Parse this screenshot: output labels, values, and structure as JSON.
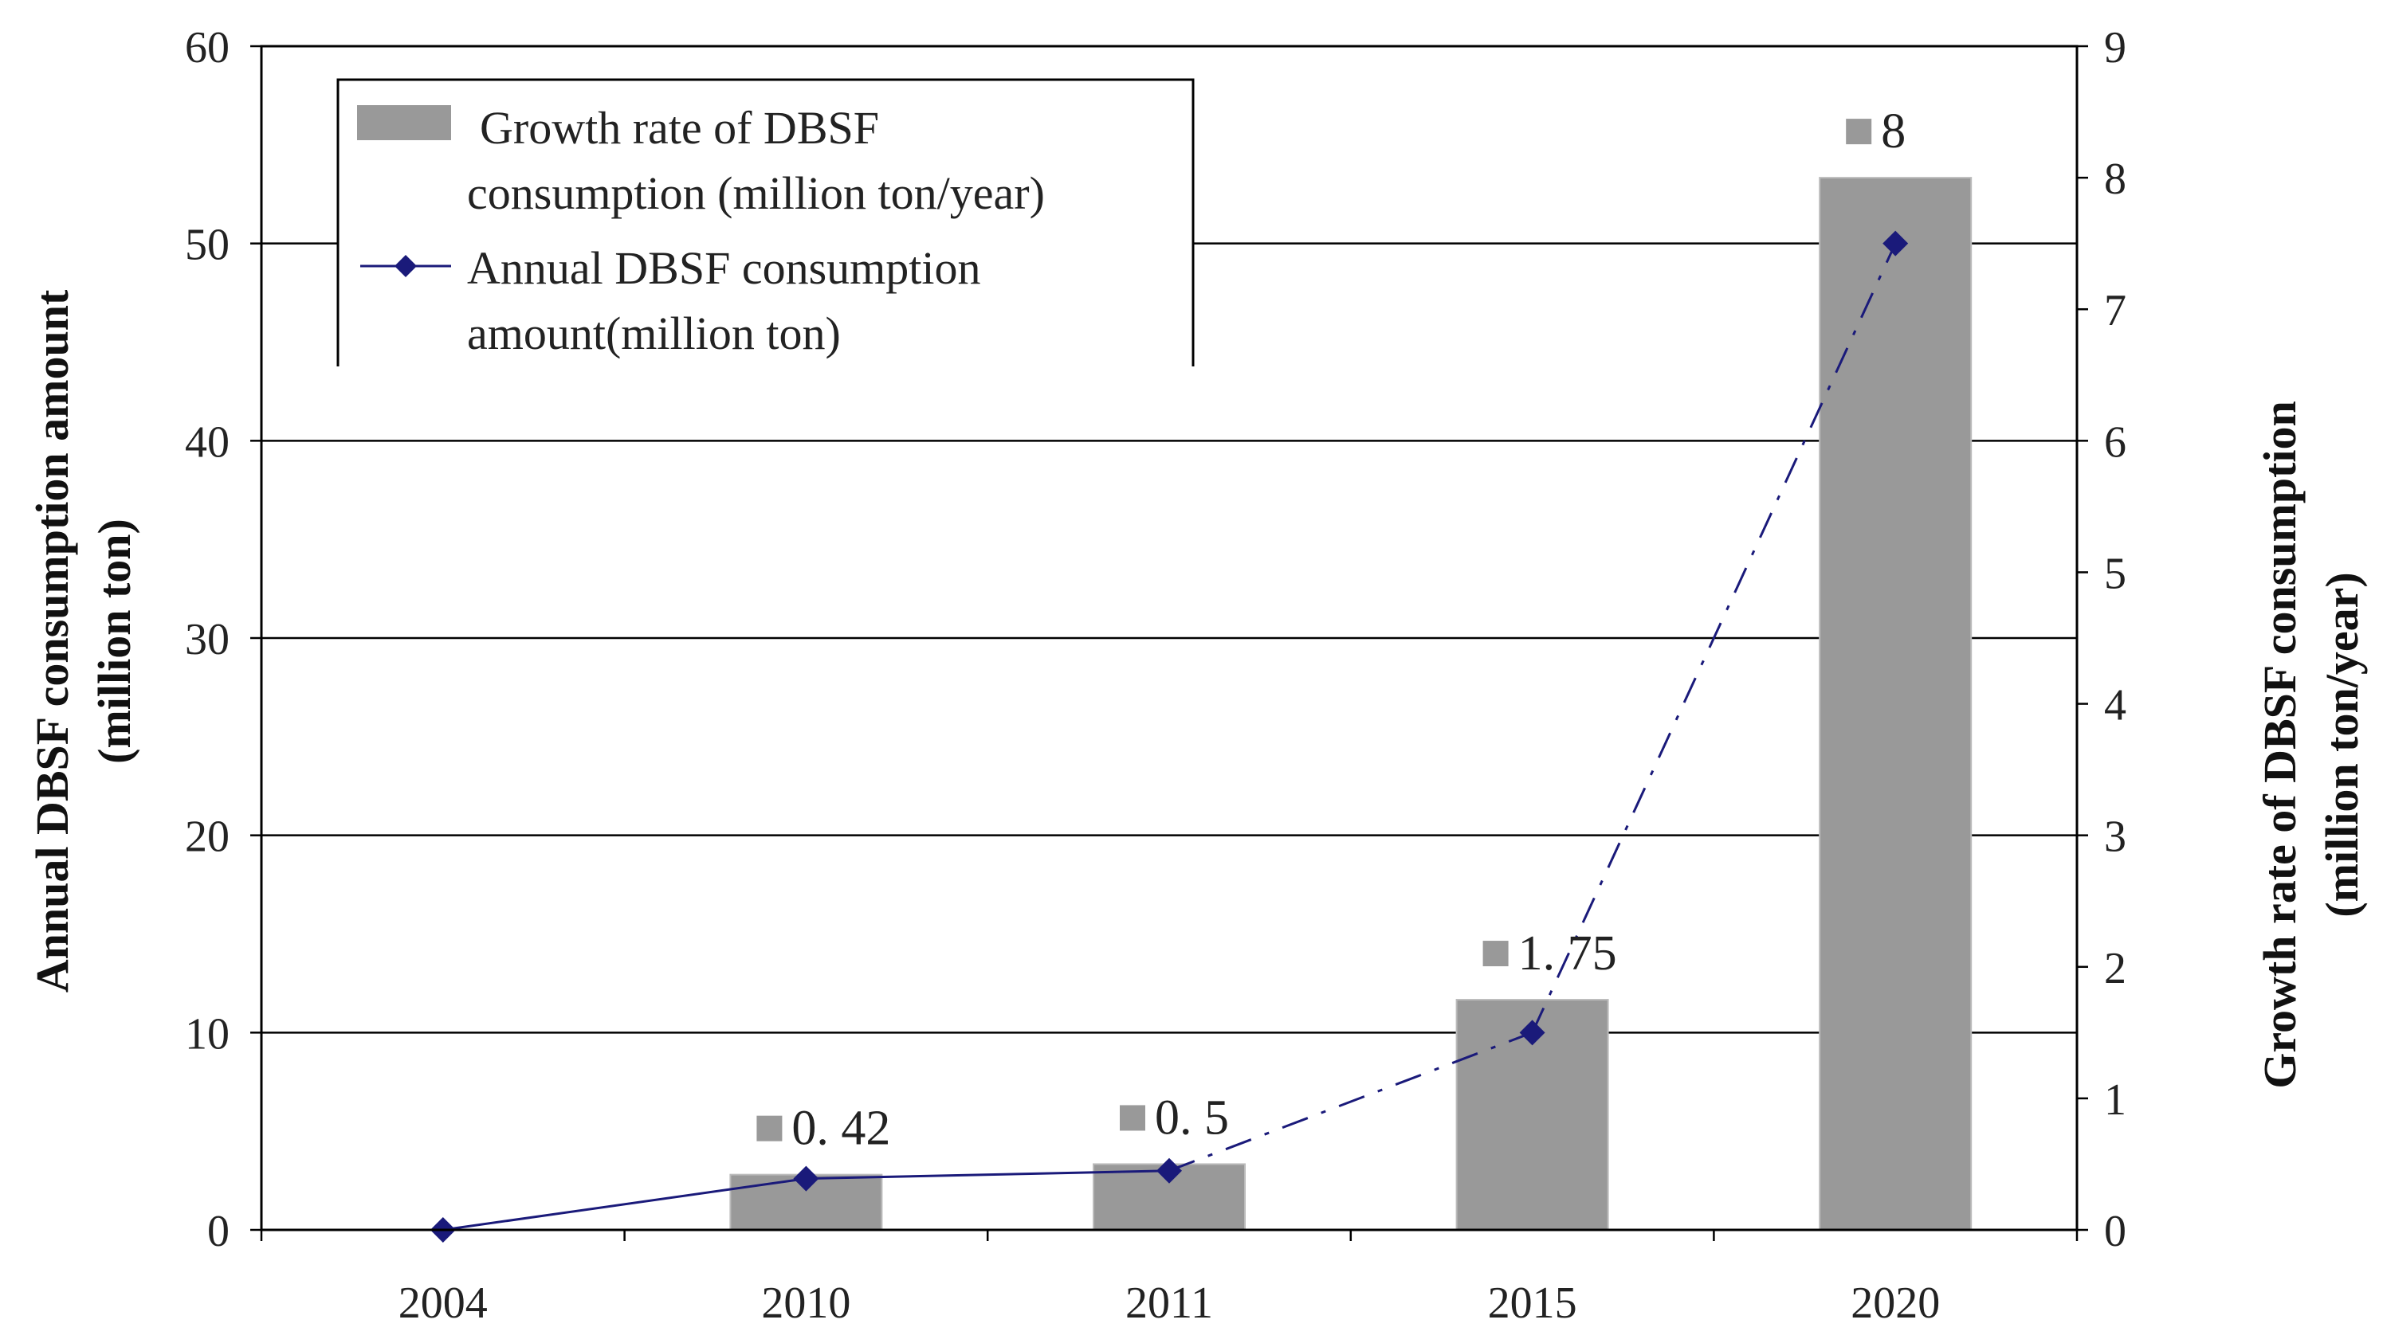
{
  "chart_data": {
    "type": "bar+line",
    "categories": [
      "2004",
      "2010",
      "2011",
      "2015",
      "2020"
    ],
    "series": [
      {
        "name": "Growth rate of DBSF consumption (million ton/year)",
        "kind": "bar",
        "axis": "right",
        "values": [
          null,
          0.42,
          0.5,
          1.75,
          8
        ],
        "labels": [
          "",
          "0. 42",
          "0. 5",
          "1. 75",
          "8"
        ],
        "color": "#999999"
      },
      {
        "name": "Annual DBSF consumption amount(million ton)",
        "kind": "line",
        "axis": "left",
        "values": [
          0,
          2.6,
          3.0,
          10.0,
          50.0
        ],
        "color": "#1a1a7a"
      }
    ],
    "left_axis": {
      "title_line1": "Annual DBSF consumption amount",
      "title_line2": "(million ton)",
      "ylim": [
        0,
        60
      ],
      "ticks": [
        "0",
        "10",
        "20",
        "30",
        "40",
        "50",
        "60"
      ]
    },
    "right_axis": {
      "title_line1": "Growth rate of DBSF consumption",
      "title_line2": "(million ton/year)",
      "ylim": [
        0,
        9
      ],
      "ticks": [
        "0",
        "1",
        "2",
        "3",
        "4",
        "5",
        "6",
        "7",
        "8",
        "9"
      ]
    },
    "legend": {
      "position": "top-left",
      "bar_line1": "Growth rate of DBSF",
      "bar_line2": "consumption (million ton/year)",
      "line_line1": "Annual DBSF consumption",
      "line_line2": "amount(million ton)"
    },
    "grid": true,
    "colors": {
      "bar": "#999999",
      "line": "#1a1a7a",
      "axis": "#000000"
    }
  }
}
